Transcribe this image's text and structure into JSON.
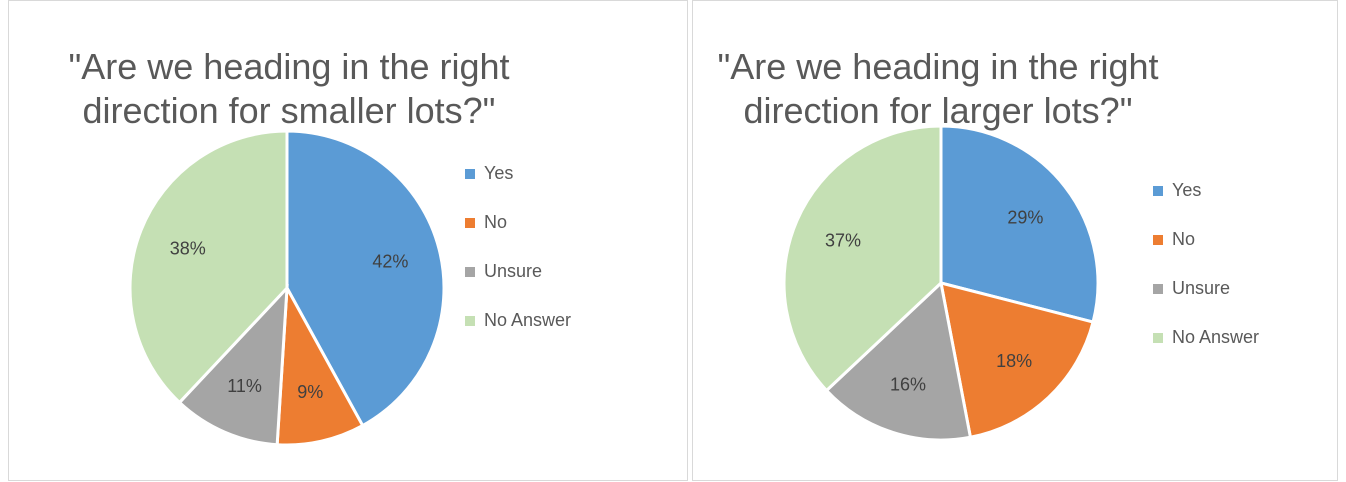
{
  "chart_data": [
    {
      "type": "pie",
      "title": "\"Are we heading in the right direction for smaller lots?\"",
      "title_lines": [
        "\"Are we heading in the right",
        "direction for smaller lots?\""
      ],
      "categories": [
        "Yes",
        "No",
        "Unsure",
        "No Answer"
      ],
      "values": [
        42,
        9,
        11,
        38
      ],
      "value_labels": [
        "42%",
        "9%",
        "11%",
        "38%"
      ],
      "colors": [
        "#5b9bd5",
        "#ed7d31",
        "#a5a5a5",
        "#c5e0b4"
      ],
      "legend_position": "right"
    },
    {
      "type": "pie",
      "title": "\"Are we heading in the right direction for larger lots?\"",
      "title_lines": [
        "\"Are we heading in the right",
        "direction for larger lots?\""
      ],
      "categories": [
        "Yes",
        "No",
        "Unsure",
        "No Answer"
      ],
      "values": [
        29,
        18,
        16,
        37
      ],
      "value_labels": [
        "29%",
        "18%",
        "16%",
        "37%"
      ],
      "colors": [
        "#5b9bd5",
        "#ed7d31",
        "#a5a5a5",
        "#c5e0b4"
      ],
      "legend_position": "right"
    }
  ]
}
